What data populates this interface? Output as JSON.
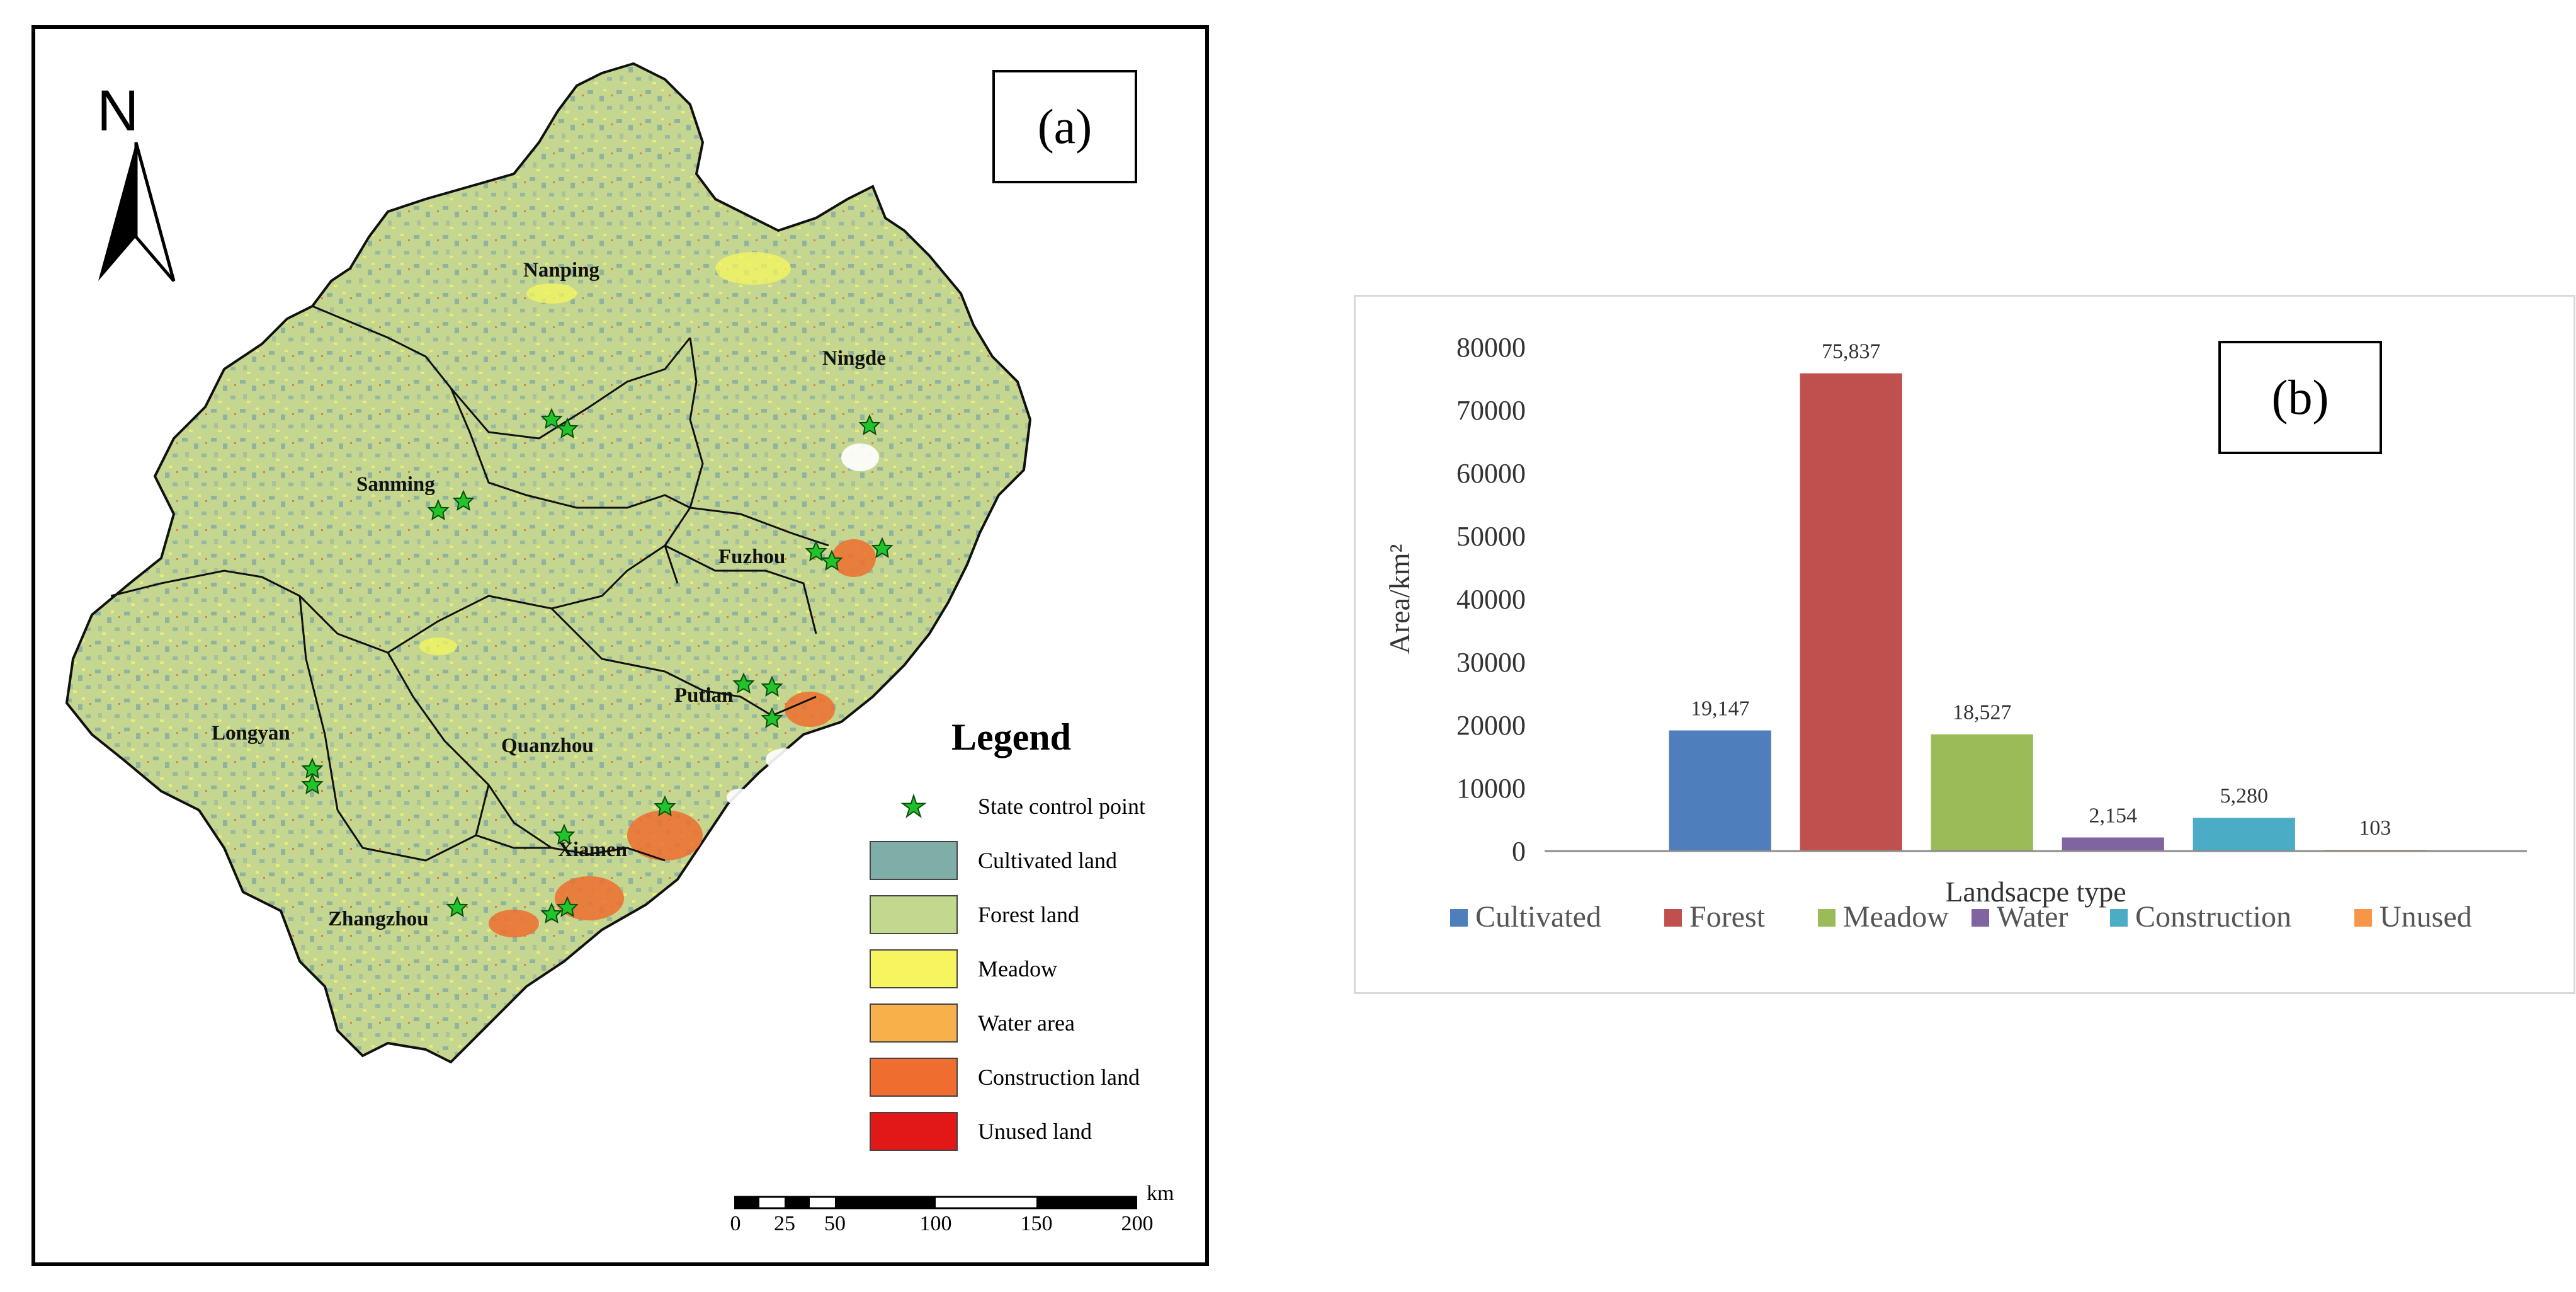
{
  "panel_a": {
    "label": "(a)",
    "north_label": "N",
    "cities": [
      "Nanping",
      "Ningde",
      "Sanming",
      "Fuzhou",
      "Putian",
      "Longyan",
      "Quanzhou",
      "Xiamen",
      "Zhangzhou"
    ],
    "legend": {
      "title": "Legend",
      "items": [
        {
          "label": "State control point",
          "symbol": "star",
          "color": "#22c42c"
        },
        {
          "label": "Cultivated land",
          "color": "#7faea8"
        },
        {
          "label": "Forest land",
          "color": "#c2d88f"
        },
        {
          "label": "Meadow",
          "color": "#f6f55f"
        },
        {
          "label": "Water area",
          "color": "#f8b14a"
        },
        {
          "label": "Construction land",
          "color": "#ef6e2f"
        },
        {
          "label": "Unused land",
          "color": "#e21717"
        }
      ]
    },
    "scale": {
      "unit": "km",
      "ticks": [
        "0",
        "25",
        "50",
        "100",
        "150",
        "200"
      ]
    }
  },
  "chart_data": {
    "type": "bar",
    "label": "(b)",
    "categories": [
      "Cultivated",
      "Forest",
      "Meadow",
      "Water",
      "Construction",
      "Unused"
    ],
    "values": [
      19147,
      75837,
      18527,
      2154,
      5280,
      103
    ],
    "value_labels": [
      "19,147",
      "75,837",
      "18,527",
      "2,154",
      "5,280",
      "103"
    ],
    "colors": [
      "#4f7ebd",
      "#c0504d",
      "#9bbb59",
      "#8064a2",
      "#4bacc6",
      "#f79646"
    ],
    "xlabel": "Landsacpe type",
    "ylabel": "Area/km²",
    "ylim": [
      0,
      80000
    ],
    "yticks": [
      "0",
      "10000",
      "20000",
      "30000",
      "40000",
      "50000",
      "60000",
      "70000",
      "80000"
    ],
    "legend_position": "bottom",
    "grid": false
  }
}
